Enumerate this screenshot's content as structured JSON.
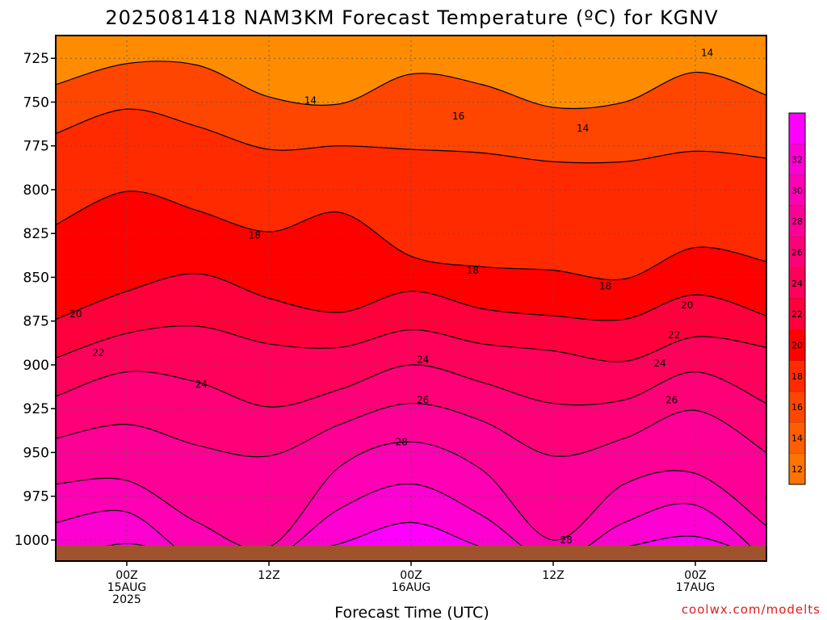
{
  "chart_data": {
    "type": "heatmap",
    "title": "2025081418 NAM3KM Forecast Temperature (ºC) for KGNV",
    "xlabel": "Forecast Time (UTC)",
    "ylabel": "",
    "x_unit": "hours since 2025-08-14 18Z",
    "xlim": [
      0,
      60
    ],
    "x_ticks": [
      {
        "x": 6,
        "lines": [
          "00Z",
          "15AUG",
          "2025"
        ]
      },
      {
        "x": 18,
        "lines": [
          "12Z"
        ]
      },
      {
        "x": 30,
        "lines": [
          "00Z",
          "16AUG"
        ]
      },
      {
        "x": 42,
        "lines": [
          "12Z"
        ]
      },
      {
        "x": 54,
        "lines": [
          "00Z",
          "17AUG"
        ]
      }
    ],
    "y_unit": "hPa",
    "ylim": [
      712,
      1012
    ],
    "y_ticks": [
      725,
      750,
      775,
      800,
      825,
      850,
      875,
      900,
      925,
      950,
      975,
      1000
    ],
    "grid": true,
    "colorbar": {
      "position": "right",
      "colors": [
        "#ff8c00",
        "#ff7300",
        "#ff5e00",
        "#ff4600",
        "#ff2a00",
        "#ff0000",
        "#ff003c",
        "#ff005a",
        "#ff0078",
        "#ff0096",
        "#ff00b4",
        "#ff00d2",
        "#ff00ff"
      ],
      "boundaries": [
        12,
        14,
        16,
        18,
        20,
        22,
        24,
        26,
        28,
        30,
        32
      ],
      "tick_labels": [
        "12",
        "14",
        "16",
        "18",
        "20",
        "22",
        "24",
        "26",
        "28",
        "30",
        "32"
      ]
    },
    "contour_labels": [
      {
        "text": "14",
        "x": 21.5,
        "y": 749
      },
      {
        "text": "14",
        "x": 44.5,
        "y": 765
      },
      {
        "text": "14",
        "x": 55.0,
        "y": 722
      },
      {
        "text": "16",
        "x": 34.0,
        "y": 758
      },
      {
        "text": "18",
        "x": 16.8,
        "y": 826
      },
      {
        "text": "18",
        "x": 35.2,
        "y": 846
      },
      {
        "text": "18",
        "x": 46.4,
        "y": 855
      },
      {
        "text": "20",
        "x": 1.7,
        "y": 871
      },
      {
        "text": "20",
        "x": 53.3,
        "y": 866
      },
      {
        "text": "22",
        "x": 3.6,
        "y": 893
      },
      {
        "text": "22",
        "x": 52.2,
        "y": 883
      },
      {
        "text": "24",
        "x": 12.3,
        "y": 911
      },
      {
        "text": "24",
        "x": 31.0,
        "y": 897
      },
      {
        "text": "24",
        "x": 51.0,
        "y": 899
      },
      {
        "text": "26",
        "x": 31.0,
        "y": 920
      },
      {
        "text": "26",
        "x": 52.0,
        "y": 920
      },
      {
        "text": "28",
        "x": 29.2,
        "y": 944
      },
      {
        "text": "28",
        "x": 43.1,
        "y": 1000
      }
    ],
    "series": [
      {
        "level": 14,
        "x": [
          0,
          6,
          12,
          18,
          24,
          30,
          36,
          42,
          48,
          54,
          60
        ],
        "y": [
          740,
          728,
          729,
          747,
          751,
          734,
          740,
          753,
          750,
          733,
          746
        ]
      },
      {
        "level": 16,
        "x": [
          0,
          6,
          12,
          18,
          24,
          30,
          36,
          42,
          48,
          54,
          60
        ],
        "y": [
          768,
          754,
          764,
          777,
          775,
          777,
          779,
          784,
          784,
          778,
          782
        ]
      },
      {
        "level": 18,
        "x": [
          0,
          6,
          12,
          18,
          24,
          30,
          36,
          42,
          48,
          54,
          60
        ],
        "y": [
          820,
          801,
          812,
          824,
          813,
          838,
          844,
          846,
          851,
          833,
          841
        ]
      },
      {
        "level": 20,
        "x": [
          0,
          6,
          12,
          18,
          24,
          30,
          36,
          42,
          48,
          54,
          60
        ],
        "y": [
          874,
          858,
          848,
          862,
          870,
          858,
          868,
          872,
          874,
          860,
          872
        ]
      },
      {
        "level": 22,
        "x": [
          0,
          6,
          12,
          18,
          24,
          30,
          36,
          42,
          48,
          54,
          60
        ],
        "y": [
          896,
          882,
          878,
          888,
          890,
          880,
          888,
          892,
          898,
          884,
          890
        ]
      },
      {
        "level": 24,
        "x": [
          0,
          6,
          12,
          18,
          24,
          30,
          36,
          42,
          48,
          54,
          60
        ],
        "y": [
          918,
          904,
          910,
          924,
          914,
          900,
          910,
          922,
          920,
          904,
          922
        ]
      },
      {
        "level": 26,
        "x": [
          0,
          6,
          12,
          18,
          24,
          30,
          36,
          42,
          48,
          54,
          60
        ],
        "y": [
          942,
          934,
          946,
          952,
          934,
          922,
          932,
          952,
          942,
          926,
          950
        ]
      },
      {
        "level": 28,
        "x": [
          0,
          6,
          12,
          18,
          24,
          30,
          36,
          42,
          48,
          54,
          60
        ],
        "y": [
          968,
          966,
          990,
          1004,
          958,
          944,
          960,
          1000,
          968,
          962,
          992
        ]
      },
      {
        "level": 30,
        "x": [
          0,
          6,
          12,
          18,
          24,
          30,
          36,
          42,
          48,
          54,
          60
        ],
        "y": [
          990,
          984,
          1012,
          1012,
          982,
          968,
          986,
          1012,
          990,
          980,
          1012
        ]
      },
      {
        "level": 32,
        "x": [
          0,
          6,
          12,
          18,
          24,
          30,
          36,
          42,
          48,
          54,
          60
        ],
        "y": [
          1012,
          1002,
          1012,
          1012,
          1002,
          990,
          1004,
          1012,
          1004,
          998,
          1012
        ]
      }
    ],
    "credit": "coolwx.com/modelts"
  }
}
